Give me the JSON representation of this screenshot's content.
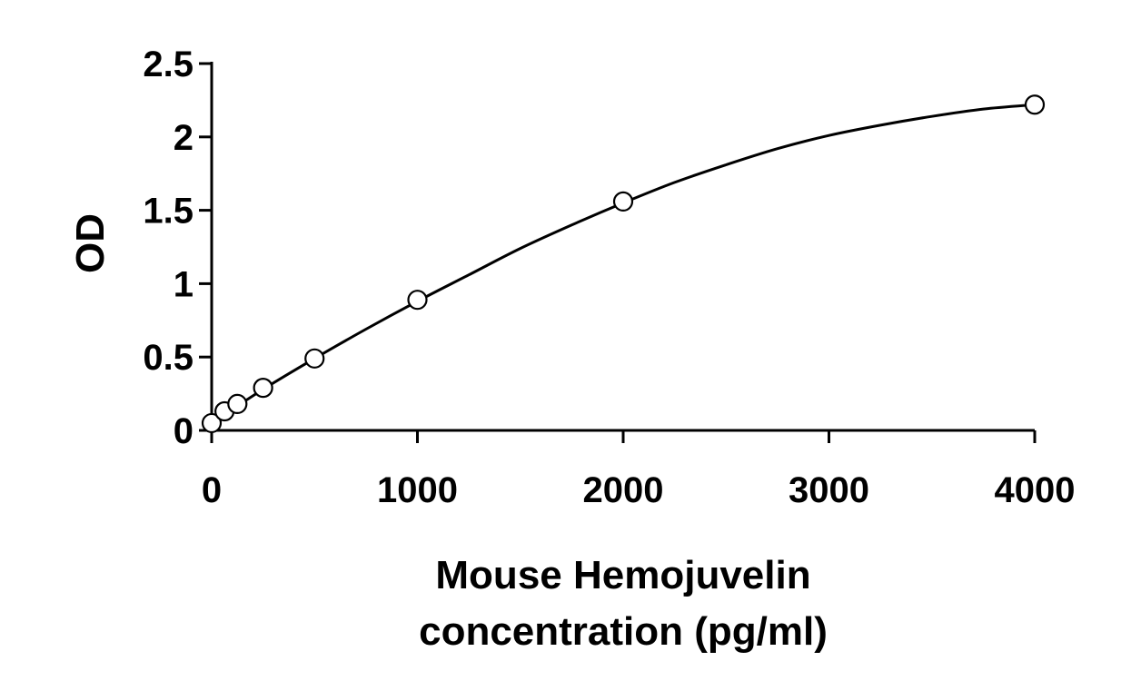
{
  "chart_data": {
    "type": "scatter",
    "xlabel_lines": [
      "Mouse Hemojuvelin",
      "concentration (pg/ml)"
    ],
    "ylabel": "OD",
    "xlim": [
      0,
      4000
    ],
    "ylim": [
      0,
      2.5
    ],
    "x_ticks": [
      0,
      1000,
      2000,
      3000,
      4000
    ],
    "x_tick_labels": [
      "0",
      "1000",
      "2000",
      "3000",
      "4000"
    ],
    "y_ticks": [
      0,
      0.5,
      1,
      1.5,
      2,
      2.5
    ],
    "y_tick_labels": [
      "0",
      "0.5",
      "1",
      "1.5",
      "2",
      "2.5"
    ],
    "grid": false,
    "legend": "none",
    "series": [
      {
        "marker": "open-circle",
        "x": [
          0,
          62.5,
          125,
          250,
          500,
          1000,
          2000,
          4000
        ],
        "y": [
          0.05,
          0.13,
          0.18,
          0.29,
          0.49,
          0.89,
          1.56,
          2.22
        ]
      }
    ],
    "fit_curve": {
      "kind": "smooth fit through standards",
      "x": [
        0,
        250,
        500,
        750,
        1000,
        1250,
        1500,
        1750,
        2000,
        2250,
        2500,
        2750,
        3000,
        3250,
        3500,
        3750,
        4000
      ],
      "y": [
        0.05,
        0.28,
        0.49,
        0.69,
        0.88,
        1.06,
        1.24,
        1.4,
        1.55,
        1.69,
        1.81,
        1.92,
        2.01,
        2.08,
        2.14,
        2.19,
        2.22
      ]
    },
    "colors": {
      "axis": "#000000",
      "curve": "#000000",
      "marker_edge": "#000000",
      "marker_fill": "#ffffff",
      "background": "#ffffff"
    }
  }
}
